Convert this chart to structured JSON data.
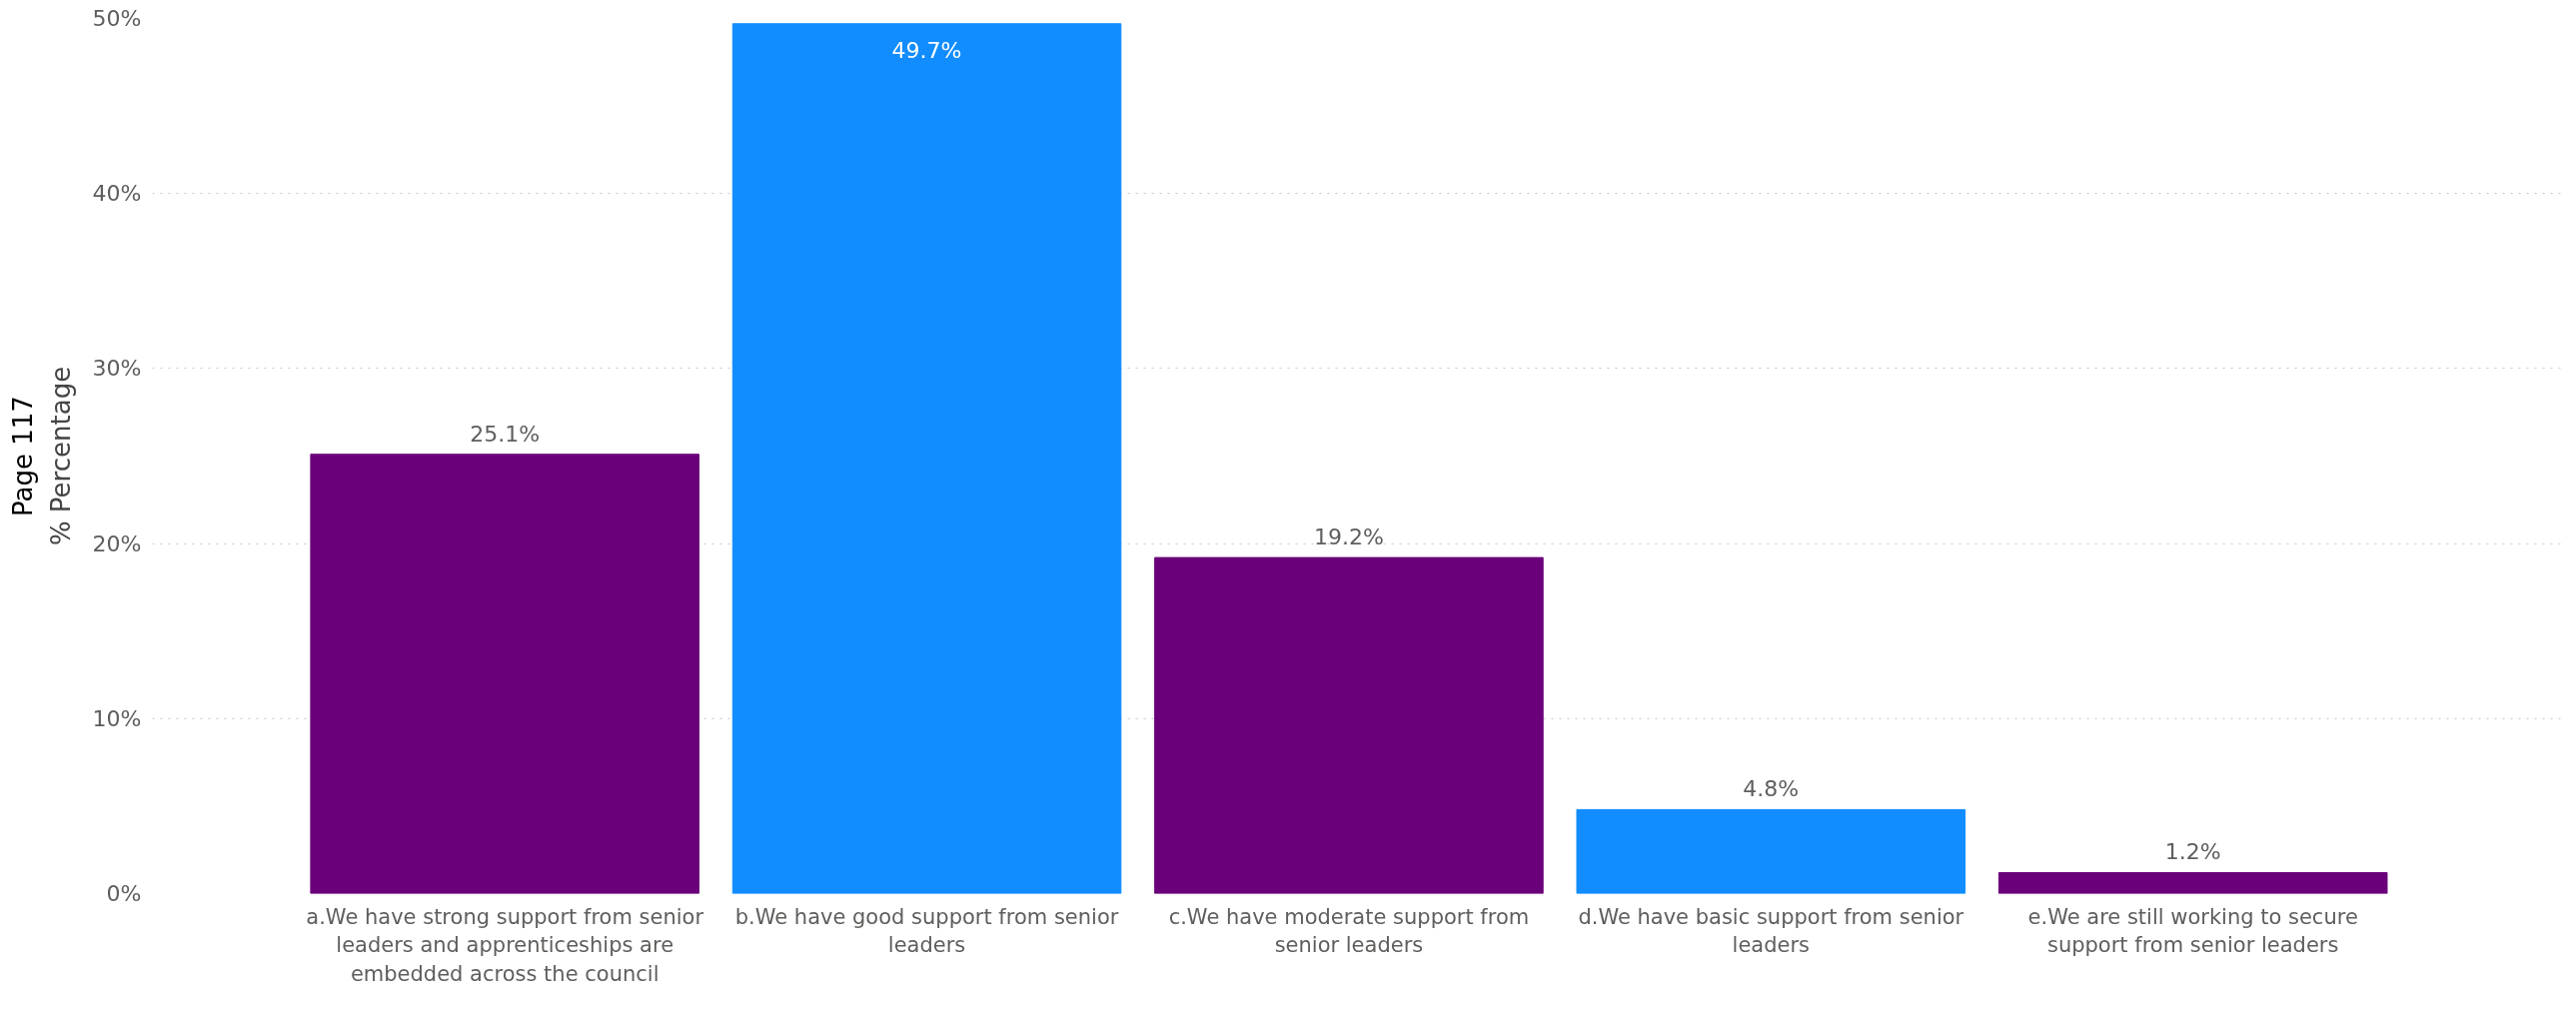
{
  "chart_data": {
    "type": "bar",
    "ylabel": "% Percentage",
    "annotations": [
      "Page 117"
    ],
    "categories": [
      "a.We have strong support from senior leaders and apprenticeships are embedded across the council",
      "b.We have good support from senior leaders",
      "c.We have moderate support from senior leaders",
      "d.We have basic support from senior leaders",
      "e.We are still working to secure support from senior leaders"
    ],
    "values": [
      25.1,
      49.7,
      19.2,
      4.8,
      1.2
    ],
    "colors": [
      "#6b007b",
      "#118dff",
      "#6b007b",
      "#118dff",
      "#6b007b"
    ],
    "ylim": [
      0,
      50
    ],
    "yticks": [
      {
        "value": 0,
        "label": "0%"
      },
      {
        "value": 10,
        "label": "10%"
      },
      {
        "value": 20,
        "label": "20%"
      },
      {
        "value": 30,
        "label": "30%"
      },
      {
        "value": 40,
        "label": "40%"
      },
      {
        "value": 50,
        "label": "50%"
      }
    ],
    "value_labels": [
      "25.1%",
      "49.7%",
      "19.2%",
      "4.8%",
      "1.2%"
    ],
    "grid": "y"
  }
}
